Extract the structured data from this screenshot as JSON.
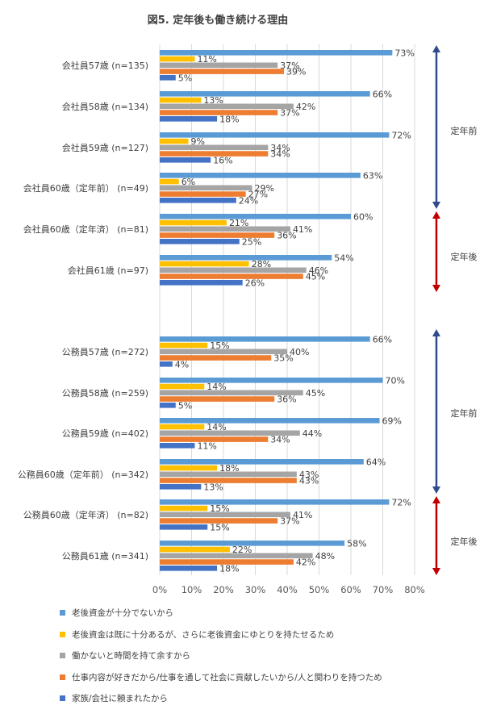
{
  "chart_data": {
    "type": "bar",
    "orientation": "horizontal",
    "title": "図5. 定年後も働き続ける理由",
    "categories": [
      "会社員57歳 (n=135)",
      "会社員58歳 (n=134)",
      "会社員59歳 (n=127)",
      "会社員60歳（定年前） (n=49)",
      "会社員60歳（定年済） (n=81)",
      "会社員61歳 (n=97)",
      "公務員57歳 (n=272)",
      "公務員58歳 (n=259)",
      "公務員59歳 (n=402)",
      "公務員60歳（定年前） (n=342)",
      "公務員60歳（定年済） (n=82)",
      "公務員61歳 (n=341)"
    ],
    "series": [
      {
        "name": "老後資金が十分でないから",
        "color": "#5B9BD5",
        "values": [
          73,
          66,
          72,
          63,
          60,
          54,
          66,
          70,
          69,
          64,
          72,
          58
        ]
      },
      {
        "name": "老後資金は既に十分あるが、さらに老後資金にゆとりを持たせるため",
        "color": "#FFC000",
        "values": [
          11,
          13,
          9,
          6,
          21,
          28,
          15,
          14,
          14,
          18,
          15,
          22
        ]
      },
      {
        "name": "働かないと時間を持て余すから",
        "color": "#A5A5A5",
        "values": [
          37,
          42,
          34,
          29,
          41,
          46,
          40,
          45,
          44,
          43,
          41,
          48
        ]
      },
      {
        "name": "仕事内容が好きだから/仕事を通して社会に貢献したいから/人と関わりを持つため",
        "color": "#ED7D31",
        "values": [
          39,
          37,
          34,
          27,
          36,
          45,
          35,
          36,
          34,
          43,
          37,
          42
        ]
      },
      {
        "name": "家族/会社に頼まれたから",
        "color": "#4472C4",
        "values": [
          5,
          18,
          16,
          24,
          25,
          26,
          4,
          5,
          11,
          13,
          15,
          18
        ]
      }
    ],
    "value_suffix": "%",
    "xlim": [
      0,
      80
    ],
    "xticks": [
      "0%",
      "10%",
      "20%",
      "30%",
      "40%",
      "50%",
      "60%",
      "70%",
      "80%"
    ],
    "legend_position": "bottom",
    "grid": "vertical",
    "brackets": [
      {
        "label": "定年前",
        "color": "#2F4B8C"
      },
      {
        "label": "定年後",
        "color": "#C00000"
      },
      {
        "label": "定年前",
        "color": "#2F4B8C"
      },
      {
        "label": "定年後",
        "color": "#C00000"
      }
    ]
  }
}
